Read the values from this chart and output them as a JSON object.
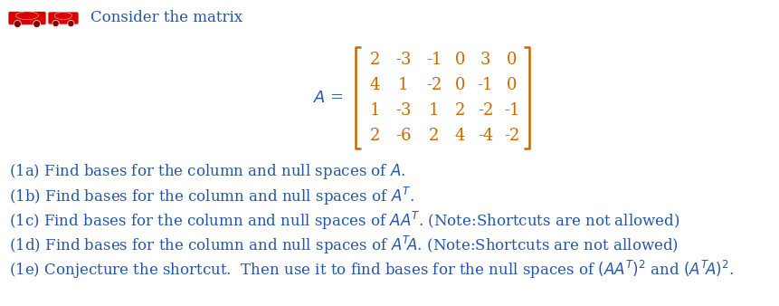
{
  "title": "Consider the matrix",
  "matrix_rows": [
    [
      "2",
      "-3",
      "-1",
      "0",
      "3",
      "0"
    ],
    [
      "4",
      "1",
      "-2",
      "0",
      "-1",
      "0"
    ],
    [
      "1",
      "-3",
      "1",
      "2",
      "-2",
      "-1"
    ],
    [
      "2",
      "-6",
      "2",
      "4",
      "-4",
      "-2"
    ]
  ],
  "text_color": "#2255aa",
  "matrix_color": "#cc6600",
  "bg_color": "#ffffff",
  "icon_color": "#dd0000",
  "fontsize": 12,
  "matrix_fontsize": 13,
  "q_texts": [
    "(1a) Find bases for the column and null spaces of $\\mathit{A}$.",
    "(1b) Find bases for the column and null spaces of $\\mathit{A}^T$.",
    "(1c) Find bases for the column and null spaces of $\\mathit{AA}^T$. (Note:Shortcuts are not allowed)",
    "(1d) Find bases for the column and null spaces of $\\mathit{A}^T\\!\\mathit{A}$. (Note:Shortcuts are not allowed)",
    "(1e) Conjecture the shortcut.  Then use it to find bases for the null spaces of $(\\mathit{AA}^T)^2$ and $(\\mathit{A}^T\\!\\mathit{A})^2$."
  ]
}
